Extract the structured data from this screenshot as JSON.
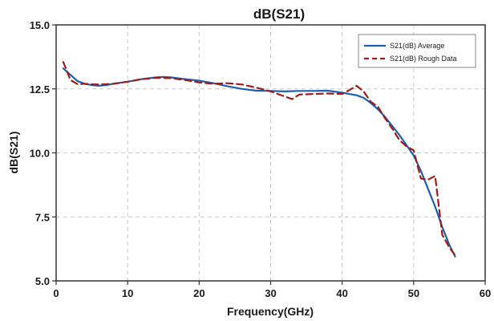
{
  "chart_data": {
    "type": "line",
    "title": "dB(S21)",
    "xlabel": "Frequency(GHz)",
    "ylabel": "dB(S21)",
    "xlim": [
      0,
      60
    ],
    "ylim": [
      5.0,
      15.0
    ],
    "x_ticks": [
      0,
      10,
      20,
      30,
      40,
      50,
      60
    ],
    "y_ticks": [
      5.0,
      7.5,
      10.0,
      12.5,
      15.0
    ],
    "x_tick_labels": [
      "0",
      "10",
      "20",
      "30",
      "40",
      "50",
      "60"
    ],
    "y_tick_labels": [
      "5.0",
      "7.5",
      "10.0",
      "12.5",
      "15.0"
    ],
    "grid": true,
    "legend_position": "top-right",
    "series": [
      {
        "name": "S21(dB) Average",
        "color": "#1f5fb0",
        "style": "solid",
        "x": [
          1,
          2,
          3,
          4,
          5,
          6,
          7,
          8,
          10,
          12,
          14,
          15,
          16,
          18,
          20,
          22,
          24,
          26,
          28,
          30,
          32,
          34,
          36,
          38,
          40,
          41,
          42,
          43,
          44,
          45,
          46,
          47,
          48,
          49,
          50,
          51,
          52,
          53,
          54,
          55,
          55.8
        ],
        "y": [
          13.3,
          13.05,
          12.8,
          12.7,
          12.65,
          12.62,
          12.65,
          12.7,
          12.78,
          12.88,
          12.95,
          12.97,
          12.95,
          12.88,
          12.82,
          12.72,
          12.6,
          12.5,
          12.43,
          12.42,
          12.4,
          12.42,
          12.42,
          12.43,
          12.35,
          12.3,
          12.25,
          12.15,
          11.95,
          11.7,
          11.4,
          11.05,
          10.7,
          10.3,
          9.9,
          9.3,
          8.6,
          7.9,
          7.1,
          6.4,
          5.95
        ]
      },
      {
        "name": "S21(dB) Rough Data",
        "color": "#a01c1c",
        "style": "dashed",
        "x": [
          1,
          1.5,
          2,
          3,
          4,
          5,
          6,
          8,
          10,
          12,
          14,
          16,
          18,
          20,
          22,
          24,
          26,
          28,
          30,
          32,
          33,
          34,
          36,
          38,
          40,
          41,
          42,
          43,
          44,
          45,
          46,
          47,
          48,
          49,
          50,
          51,
          52,
          53,
          54,
          55,
          55.8
        ],
        "y": [
          13.55,
          13.2,
          12.85,
          12.68,
          12.7,
          12.68,
          12.67,
          12.7,
          12.78,
          12.88,
          12.93,
          12.92,
          12.85,
          12.75,
          12.7,
          12.72,
          12.67,
          12.55,
          12.4,
          12.2,
          12.1,
          12.28,
          12.3,
          12.32,
          12.3,
          12.45,
          12.62,
          12.4,
          12.0,
          11.8,
          11.35,
          10.95,
          10.5,
          10.25,
          10.1,
          9.0,
          8.95,
          9.1,
          6.8,
          6.3,
          6.0
        ]
      }
    ]
  }
}
